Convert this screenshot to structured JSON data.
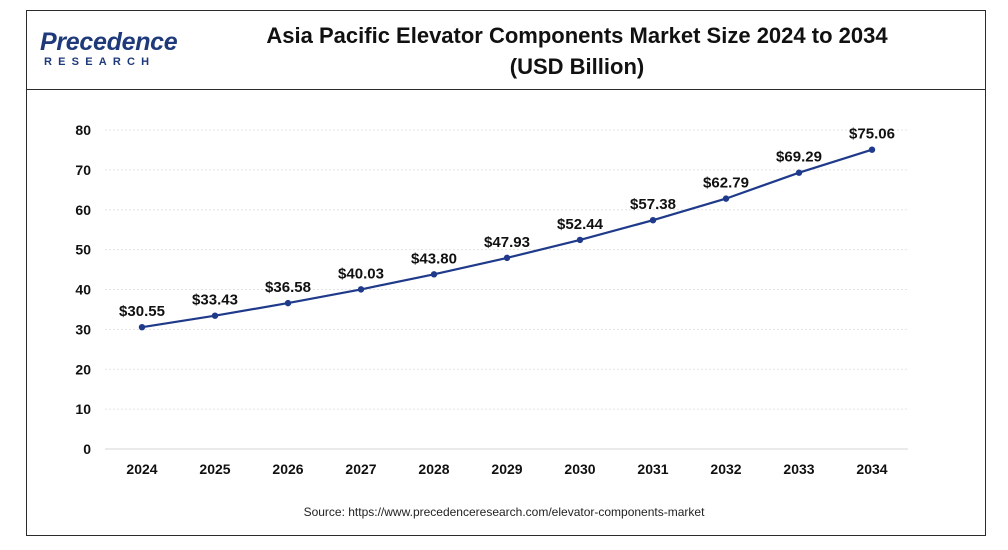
{
  "logo": {
    "name": "Precedence",
    "sub": "RESEARCH"
  },
  "title_line1": "Asia Pacific Elevator Components Market Size 2024 to 2034",
  "title_line2": "(USD Billion)",
  "source": "Source: https://www.precedenceresearch.com/elevator-components-market",
  "colors": {
    "line": "#1f3a8a",
    "grid": "#e3e3e3",
    "frame": "#2b2b2b"
  },
  "chart_data": {
    "type": "line",
    "title": "Asia Pacific Elevator Components Market Size 2024 to 2034 (USD Billion)",
    "xlabel": "",
    "ylabel": "",
    "categories": [
      "2024",
      "2025",
      "2026",
      "2027",
      "2028",
      "2029",
      "2030",
      "2031",
      "2032",
      "2033",
      "2034"
    ],
    "series": [
      {
        "values": [
          30.55,
          33.43,
          36.58,
          40.03,
          43.8,
          47.93,
          52.44,
          57.38,
          62.79,
          69.29,
          75.06
        ]
      }
    ],
    "data_labels": [
      "$30.55",
      "$33.43",
      "$36.58",
      "$40.03",
      "$43.80",
      "$47.93",
      "$52.44",
      "$57.38",
      "$62.79",
      "$69.29",
      "$75.06"
    ],
    "ylim": [
      0,
      80
    ],
    "yticks": [
      0,
      10,
      20,
      30,
      40,
      50,
      60,
      70,
      80
    ],
    "grid": true,
    "legend": "none"
  }
}
